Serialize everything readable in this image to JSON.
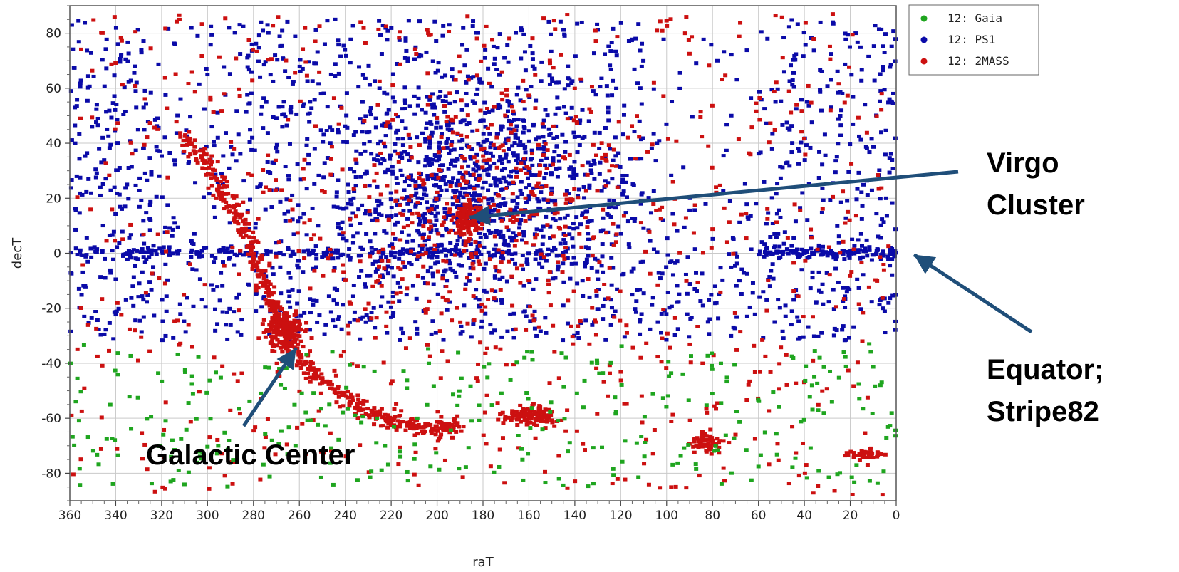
{
  "chart_data": {
    "type": "scatter",
    "title": "",
    "xlabel": "raT",
    "ylabel": "decT",
    "xlim": [
      360,
      0
    ],
    "ylim": [
      -90,
      90
    ],
    "x_reversed": true,
    "xticks": [
      360,
      340,
      320,
      300,
      280,
      260,
      240,
      220,
      200,
      180,
      160,
      140,
      120,
      100,
      80,
      60,
      40,
      20,
      0
    ],
    "yticks": [
      80,
      60,
      40,
      20,
      0,
      -20,
      -40,
      -60,
      -80
    ],
    "grid": true,
    "legend_position": "top-right",
    "series": [
      {
        "name": "12: Gaia",
        "color": "#1fa51f",
        "region": "mostly dec < -30 (southern sky, not covered by PS1)",
        "approx_points": 300
      },
      {
        "name": "12: PS1",
        "color": "#0a0aa8",
        "region": "dec > -30 (northern sky), dense near equator and Virgo",
        "approx_points": 2600
      },
      {
        "name": "12: 2MASS",
        "color": "#cc1010",
        "region": "all sky, concentrated along galactic plane",
        "approx_points": 1700
      }
    ],
    "features": [
      {
        "label": "Galactic Center",
        "ra": 266,
        "dec": -29
      },
      {
        "label": "Virgo Cluster",
        "ra": 187,
        "dec": 12
      },
      {
        "label": "Equator; Stripe82",
        "ra": 0,
        "dec": 0
      }
    ],
    "annotations": [
      {
        "lines": [
          "Virgo",
          "Cluster"
        ],
        "target_ra": 187,
        "target_dec": 12
      },
      {
        "lines": [
          "Equator;",
          "Stripe82"
        ],
        "target_ra": 0,
        "target_dec": 0
      },
      {
        "lines": [
          "Galactic Center"
        ],
        "target_ra": 262,
        "target_dec": -35
      }
    ]
  }
}
